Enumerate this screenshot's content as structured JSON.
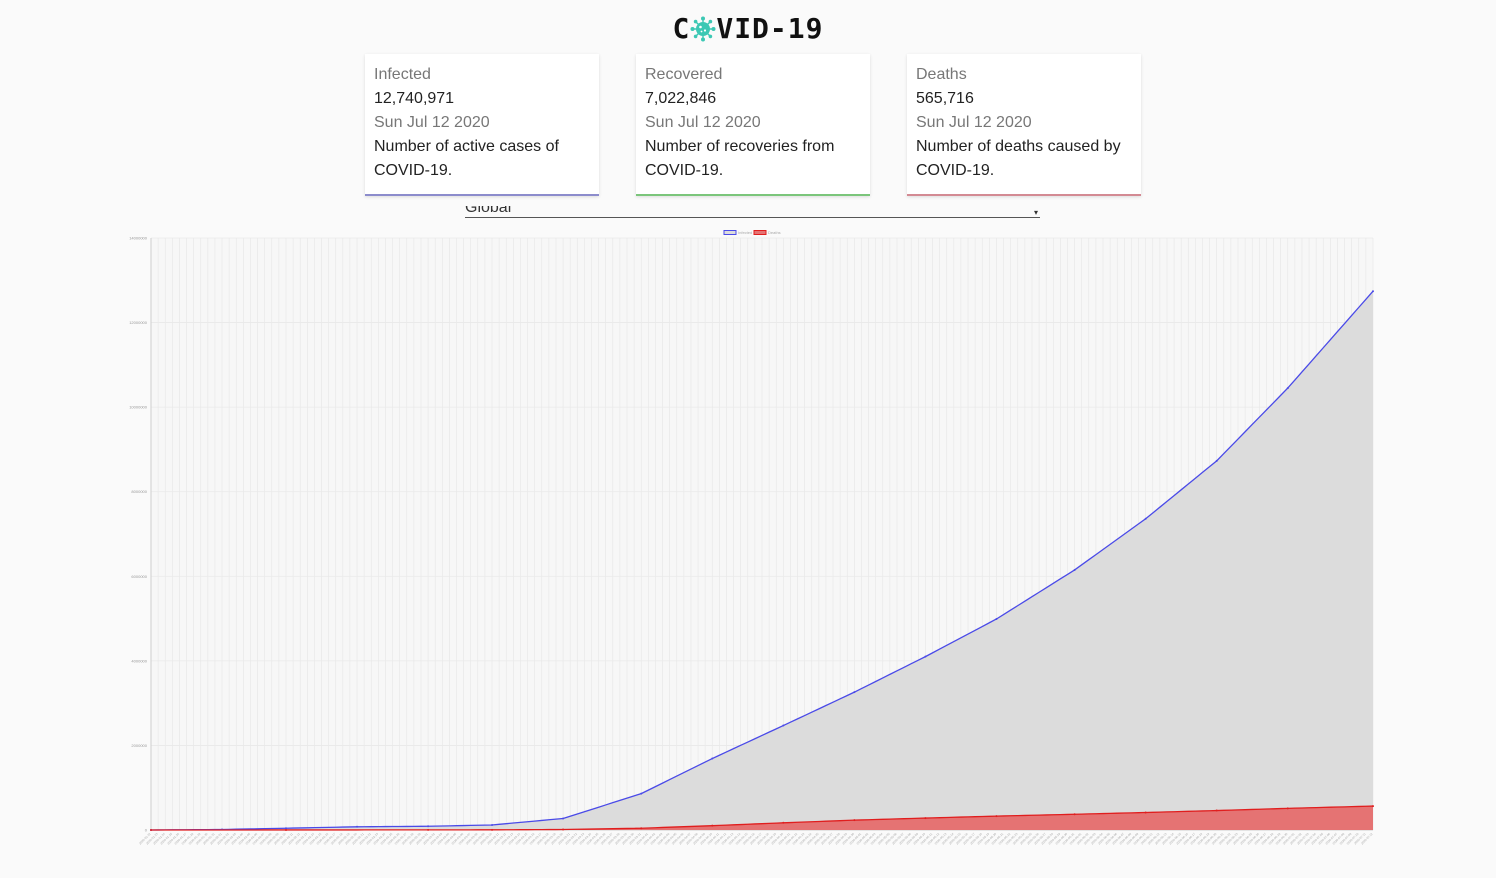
{
  "header": {
    "title_left": "C",
    "title_right": "VID-19",
    "logo_icon": "virus-icon"
  },
  "cards": [
    {
      "label": "Infected",
      "value": "12,740,971",
      "date": "Sun Jul 12 2020",
      "desc": "Number of active cases of COVID-19.",
      "color": "#8c8ccc"
    },
    {
      "label": "Recovered",
      "value": "7,022,846",
      "date": "Sun Jul 12 2020",
      "desc": "Number of recoveries from COVID-19.",
      "color": "#7bc57b"
    },
    {
      "label": "Deaths",
      "value": "565,716",
      "date": "Sun Jul 12 2020",
      "desc": "Number of deaths caused by COVID-19.",
      "color": "#d38a93"
    }
  ],
  "country_select": {
    "selected": "Global"
  },
  "chart_data": {
    "type": "area",
    "legend_placement": "top-center",
    "grid": true,
    "ylim": [
      0,
      14000000
    ],
    "y_ticks": [
      0,
      2000000,
      4000000,
      6000000,
      8000000,
      10000000,
      12000000,
      14000000
    ],
    "x_start": "2020-01-22",
    "x_end": "2020-07-12",
    "series": [
      {
        "name": "Infected",
        "color": "#4a4ae8",
        "fill": "#dcdcdc",
        "points": [
          [
            "2020-01-22",
            555
          ],
          [
            "2020-02-01",
            12000
          ],
          [
            "2020-02-10",
            42000
          ],
          [
            "2020-02-20",
            76000
          ],
          [
            "2020-03-01",
            88000
          ],
          [
            "2020-03-10",
            119000
          ],
          [
            "2020-03-20",
            272000
          ],
          [
            "2020-03-31",
            860000
          ],
          [
            "2020-04-10",
            1690000
          ],
          [
            "2020-04-20",
            2470000
          ],
          [
            "2020-04-30",
            3260000
          ],
          [
            "2020-05-10",
            4100000
          ],
          [
            "2020-05-20",
            4990000
          ],
          [
            "2020-05-31",
            6150000
          ],
          [
            "2020-06-10",
            7360000
          ],
          [
            "2020-06-20",
            8730000
          ],
          [
            "2020-06-30",
            10450000
          ],
          [
            "2020-07-12",
            12740971
          ]
        ]
      },
      {
        "name": "Deaths",
        "color": "#e01e1e",
        "fill": "#e57373",
        "points": [
          [
            "2020-01-22",
            17
          ],
          [
            "2020-02-10",
            1000
          ],
          [
            "2020-03-01",
            3000
          ],
          [
            "2020-03-10",
            4200
          ],
          [
            "2020-03-20",
            11400
          ],
          [
            "2020-03-31",
            42000
          ],
          [
            "2020-04-10",
            102000
          ],
          [
            "2020-04-20",
            170000
          ],
          [
            "2020-04-30",
            233000
          ],
          [
            "2020-05-10",
            282000
          ],
          [
            "2020-05-20",
            329000
          ],
          [
            "2020-05-31",
            372000
          ],
          [
            "2020-06-10",
            414000
          ],
          [
            "2020-06-20",
            460000
          ],
          [
            "2020-06-30",
            512000
          ],
          [
            "2020-07-12",
            565716
          ]
        ]
      }
    ]
  }
}
